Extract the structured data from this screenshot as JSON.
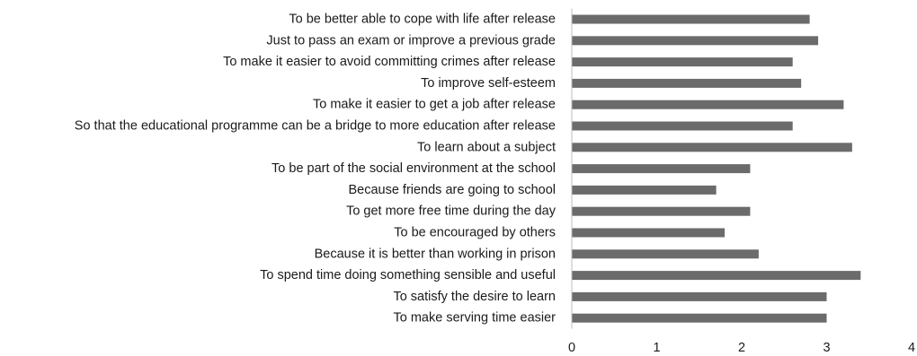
{
  "chart_data": {
    "type": "bar",
    "orientation": "horizontal",
    "categories": [
      "To be better able to cope with life after release",
      "Just to pass an exam or improve a previous grade",
      "To make it easier to avoid committing crimes after release",
      "To improve self-esteem",
      "To make it easier to get a job after release",
      "So that the educational programme can be a bridge to more education after release",
      "To learn about a subject",
      "To be part of the social environment at the school",
      "Because friends are going to school",
      "To get more free time during the day",
      "To be encouraged by others",
      "Because it is better than working in prison",
      "To spend time doing something sensible and useful",
      "To satisfy the desire to learn",
      "To make serving time easier"
    ],
    "values": [
      2.8,
      2.9,
      2.6,
      2.7,
      3.2,
      2.6,
      3.3,
      2.1,
      1.7,
      2.1,
      1.8,
      2.2,
      3.4,
      3.0,
      3.0
    ],
    "xlim": [
      0,
      4
    ],
    "xticks": [
      "0",
      "1",
      "2",
      "3",
      "4"
    ],
    "title": "",
    "xlabel": "",
    "ylabel": "",
    "bar_color": "#6b6b6b",
    "grid": false,
    "legend": "none"
  }
}
